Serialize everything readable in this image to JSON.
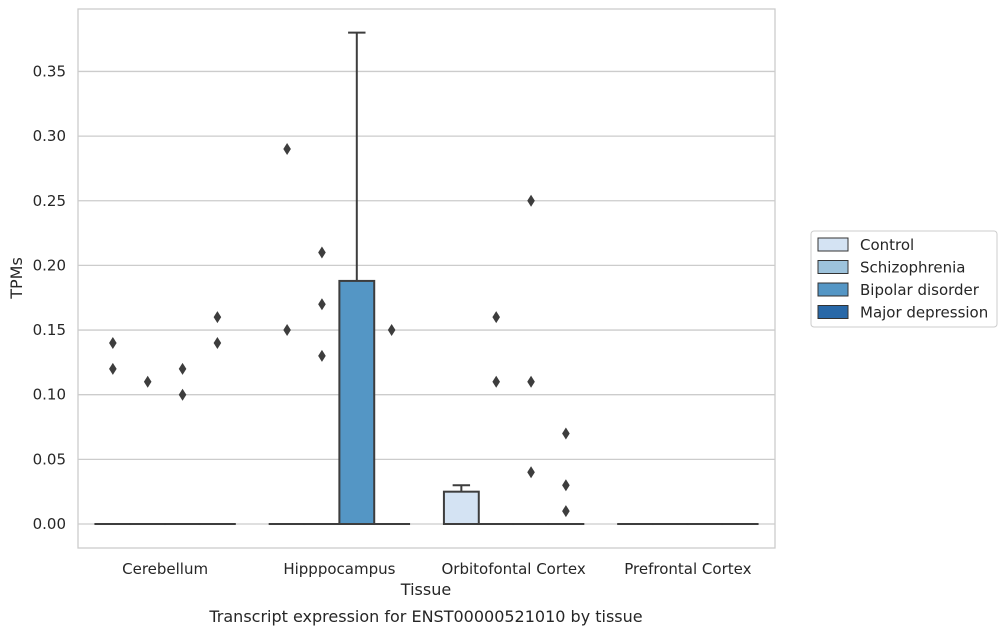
{
  "chart_data": {
    "type": "box",
    "title": "",
    "caption": "Transcript expression for ENST00000521010 by tissue",
    "xlabel": "Tissue",
    "ylabel": "TPMs",
    "ylim": [
      -0.018,
      0.398
    ],
    "yticks": [
      "0.00",
      "0.05",
      "0.10",
      "0.15",
      "0.20",
      "0.25",
      "0.30",
      "0.35"
    ],
    "categories": [
      "Cerebellum",
      "Hipppocampus",
      "Orbitofontal Cortex",
      "Prefrontal Cortex"
    ],
    "grid": "horizontal",
    "legend_position": "right",
    "series": [
      {
        "name": "Control",
        "color": "#d4e3f3",
        "boxes": [
          {
            "q1": 0,
            "median": 0,
            "q3": 0,
            "whislo": 0,
            "whishi": 0,
            "fliers": [
              0.14,
              0.12
            ]
          },
          {
            "q1": 0,
            "median": 0,
            "q3": 0,
            "whislo": 0,
            "whishi": 0,
            "fliers": [
              0.29,
              0.15
            ]
          },
          {
            "q1": 0,
            "median": 0,
            "q3": 0.025,
            "whislo": 0,
            "whishi": 0.03,
            "fliers": []
          },
          {
            "q1": 0,
            "median": 0,
            "q3": 0,
            "whislo": 0,
            "whishi": 0,
            "fliers": []
          }
        ]
      },
      {
        "name": "Schizophrenia",
        "color": "#9dc3dc",
        "boxes": [
          {
            "q1": 0,
            "median": 0,
            "q3": 0,
            "whislo": 0,
            "whishi": 0,
            "fliers": [
              0.11
            ]
          },
          {
            "q1": 0,
            "median": 0,
            "q3": 0,
            "whislo": 0,
            "whishi": 0,
            "fliers": [
              0.21,
              0.17,
              0.13
            ]
          },
          {
            "q1": 0,
            "median": 0,
            "q3": 0,
            "whislo": 0,
            "whishi": 0,
            "fliers": [
              0.16,
              0.11
            ]
          },
          {
            "q1": 0,
            "median": 0,
            "q3": 0,
            "whislo": 0,
            "whishi": 0,
            "fliers": []
          }
        ]
      },
      {
        "name": "Bipolar disorder",
        "color": "#5496c5",
        "boxes": [
          {
            "q1": 0,
            "median": 0,
            "q3": 0,
            "whislo": 0,
            "whishi": 0,
            "fliers": [
              0.12,
              0.1
            ]
          },
          {
            "q1": 0,
            "median": 0,
            "q3": 0.188,
            "whislo": 0,
            "whishi": 0.38,
            "fliers": []
          },
          {
            "q1": 0,
            "median": 0,
            "q3": 0,
            "whislo": 0,
            "whishi": 0,
            "fliers": [
              0.25,
              0.11,
              0.04
            ]
          },
          {
            "q1": 0,
            "median": 0,
            "q3": 0,
            "whislo": 0,
            "whishi": 0,
            "fliers": []
          }
        ]
      },
      {
        "name": "Major depression",
        "color": "#2868a8",
        "boxes": [
          {
            "q1": 0,
            "median": 0,
            "q3": 0,
            "whislo": 0,
            "whishi": 0,
            "fliers": [
              0.16,
              0.14
            ]
          },
          {
            "q1": 0,
            "median": 0,
            "q3": 0,
            "whislo": 0,
            "whishi": 0,
            "fliers": [
              0.15
            ]
          },
          {
            "q1": 0,
            "median": 0,
            "q3": 0,
            "whislo": 0,
            "whishi": 0,
            "fliers": [
              0.03,
              0.01,
              0.07
            ]
          },
          {
            "q1": 0,
            "median": 0,
            "q3": 0,
            "whislo": 0,
            "whishi": 0,
            "fliers": []
          }
        ]
      }
    ]
  }
}
